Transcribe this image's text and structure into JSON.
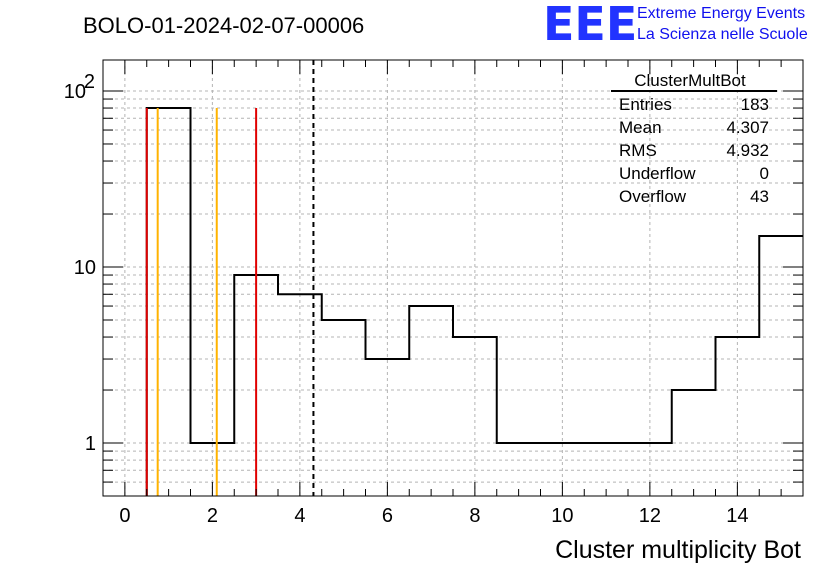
{
  "chart_data": {
    "type": "bar",
    "title": "BOLO-01-2024-02-07-00006",
    "xlabel": "Cluster multiplicity Bot",
    "ylabel": "",
    "xlim": [
      -0.5,
      15.5
    ],
    "ylim": [
      0.5,
      150
    ],
    "yscale": "log",
    "grid": true,
    "bin_edges": [
      0.5,
      1.5,
      2.5,
      3.5,
      4.5,
      5.5,
      6.5,
      7.5,
      8.5,
      9.5,
      10.5,
      11.5,
      12.5,
      13.5,
      14.5,
      15.5
    ],
    "values": [
      80,
      1,
      9,
      7,
      5,
      3,
      6,
      4,
      1,
      1,
      1,
      1,
      2,
      4,
      15
    ],
    "x_ticks": [
      "0",
      "2",
      "4",
      "6",
      "8",
      "10",
      "12",
      "14"
    ],
    "x_tick_values": [
      0,
      2,
      4,
      6,
      8,
      10,
      12,
      14
    ],
    "y_ticks": [
      {
        "value": 1,
        "base": "1",
        "exp": ""
      },
      {
        "value": 10,
        "base": "10",
        "exp": ""
      },
      {
        "value": 100,
        "base": "10",
        "exp": "2"
      }
    ],
    "vertical_lines": [
      {
        "x": 0.5,
        "color": "#e00000",
        "style": "solid"
      },
      {
        "x": 0.75,
        "color": "#ffb300",
        "style": "solid"
      },
      {
        "x": 2.1,
        "color": "#ffb300",
        "style": "solid"
      },
      {
        "x": 3.0,
        "color": "#e00000",
        "style": "solid"
      },
      {
        "x": 4.31,
        "color": "#000000",
        "style": "dashed"
      }
    ],
    "stats": {
      "title": "ClusterMultBot",
      "rows": [
        {
          "label": "Entries",
          "value": "183"
        },
        {
          "label": "Mean",
          "value": "4.307"
        },
        {
          "label": "RMS",
          "value": "4.932"
        },
        {
          "label": "Underflow",
          "value": "0"
        },
        {
          "label": "Overflow",
          "value": "43"
        }
      ]
    }
  },
  "logo": {
    "text": "EEE",
    "line1": "Extreme Energy Events",
    "line2": "La Scienza nelle Scuole",
    "color": "#2233ff"
  }
}
